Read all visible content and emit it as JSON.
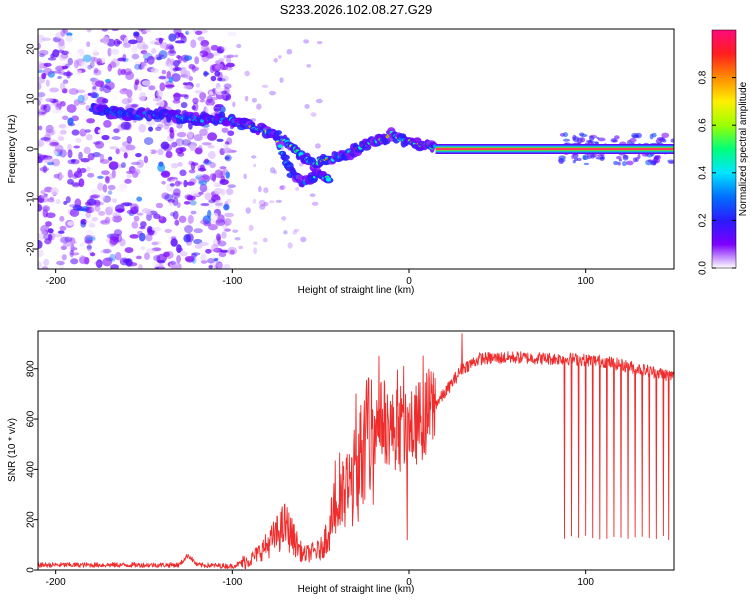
{
  "title": "S233.2026.102.08.27.G29",
  "colors": {
    "snr_line": "#ef2b2b",
    "frame": "#000000",
    "core_line": "#e8244f",
    "halo": "#2fe8d0"
  },
  "colormap": [
    "#ffffff",
    "#7b00ff",
    "#2a1bff",
    "#0070ff",
    "#00e5ff",
    "#00ff7a",
    "#9cff00",
    "#ffef00",
    "#ff8c00",
    "#ff1e1e",
    "#ff0a7a"
  ],
  "chart_data": [
    {
      "type": "heatmap",
      "name": "spectrogram",
      "xlabel": "Height of straight line (km)",
      "ylabel": "Frequency (Hz)",
      "xlim": [
        -210,
        150
      ],
      "ylim": [
        -24,
        24
      ],
      "xticks": [
        -200,
        -100,
        0,
        100
      ],
      "yticks": [
        -20,
        -10,
        0,
        10,
        20
      ],
      "colorbar": {
        "label": "Normalized spectral amplitude",
        "range": [
          0,
          1
        ],
        "ticks": [
          0.0,
          0.2,
          0.4,
          0.6,
          0.8
        ]
      },
      "ridge": [
        [
          -180,
          8
        ],
        [
          -160,
          7
        ],
        [
          -140,
          7
        ],
        [
          -120,
          6
        ],
        [
          -105,
          6
        ],
        [
          -95,
          5
        ],
        [
          -85,
          4
        ],
        [
          -75,
          3
        ],
        [
          -65,
          0
        ],
        [
          -55,
          -3
        ],
        [
          -45,
          -2
        ],
        [
          -35,
          -1
        ],
        [
          -25,
          1
        ],
        [
          -15,
          2
        ],
        [
          -10,
          3
        ],
        [
          -5,
          2
        ],
        [
          5,
          1
        ],
        [
          15,
          0.5
        ],
        [
          30,
          0
        ],
        [
          150,
          0
        ]
      ],
      "lobe": [
        [
          -75,
          2
        ],
        [
          -68,
          -4
        ],
        [
          -60,
          -7
        ],
        [
          -52,
          -5
        ],
        [
          -45,
          -6
        ]
      ],
      "constant_line": {
        "freq": 0,
        "x_start": 15,
        "x_end": 150,
        "amplitude": 1.0
      },
      "noise_region": {
        "x_range": [
          -210,
          -100
        ],
        "freq_range": [
          -24,
          24
        ],
        "amplitude": 0.15
      },
      "late_noise_region": {
        "x_range": [
          85,
          150
        ],
        "freq_range": [
          -3,
          3
        ],
        "amplitude": 0.25
      }
    },
    {
      "type": "line",
      "name": "snr",
      "xlabel": "Height of straight line (km)",
      "ylabel": "SNR (10 * v/v)",
      "xlim": [
        -210,
        150
      ],
      "ylim": [
        0,
        950
      ],
      "xticks": [
        -200,
        -100,
        0,
        100
      ],
      "yticks": [
        0,
        200,
        400,
        600,
        800
      ],
      "envelope": [
        [
          -210,
          20
        ],
        [
          -130,
          20
        ],
        [
          -125,
          60
        ],
        [
          -120,
          20
        ],
        [
          -100,
          15
        ],
        [
          -90,
          40
        ],
        [
          -80,
          100
        ],
        [
          -70,
          180
        ],
        [
          -65,
          120
        ],
        [
          -60,
          60
        ],
        [
          -50,
          80
        ],
        [
          -40,
          250
        ],
        [
          -30,
          380
        ],
        [
          -25,
          500
        ],
        [
          -20,
          550
        ],
        [
          -15,
          600
        ],
        [
          -10,
          560
        ],
        [
          -5,
          540
        ],
        [
          0,
          550
        ],
        [
          10,
          620
        ],
        [
          20,
          700
        ],
        [
          30,
          800
        ],
        [
          40,
          840
        ],
        [
          60,
          845
        ],
        [
          80,
          840
        ],
        [
          90,
          840
        ],
        [
          110,
          830
        ],
        [
          130,
          800
        ],
        [
          150,
          770
        ]
      ],
      "spikes": [
        [
          -30,
          700
        ],
        [
          -17,
          850
        ],
        [
          -3,
          810
        ],
        [
          -1,
          120
        ],
        [
          30,
          940
        ]
      ],
      "dropouts_x": [
        88,
        92,
        96,
        100,
        104,
        108,
        112,
        116,
        120,
        124,
        128,
        132,
        136,
        140,
        144,
        147
      ],
      "dropout_level": 120
    }
  ]
}
